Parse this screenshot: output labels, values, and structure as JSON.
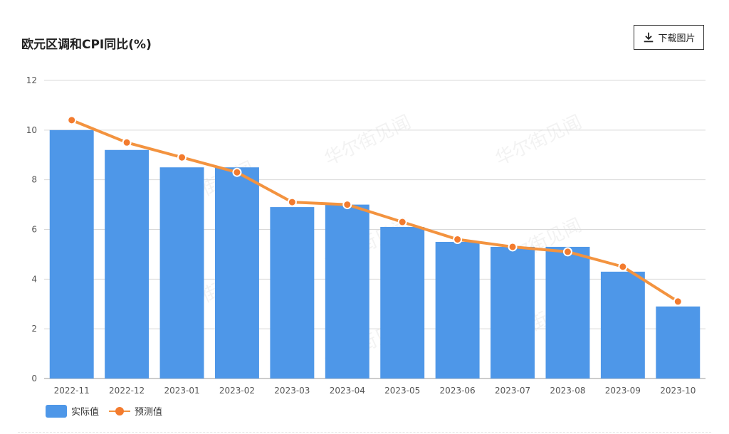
{
  "title": "欧元区调和CPI同比(%)",
  "download_label": "下载图片",
  "watermark": "华尔街见闻",
  "legend": {
    "actual": "实际值",
    "forecast": "预测值"
  },
  "colors": {
    "bar": "#4e97e8",
    "line": "#f3933f",
    "point": "#f37b2e",
    "grid": "#d9d9d9",
    "axis_text": "#555555"
  },
  "chart_data": {
    "type": "bar",
    "categories": [
      "2022-11",
      "2022-12",
      "2023-01",
      "2023-02",
      "2023-03",
      "2023-04",
      "2023-05",
      "2023-06",
      "2023-07",
      "2023-08",
      "2023-09",
      "2023-10"
    ],
    "series": [
      {
        "name": "实际值",
        "type": "bar",
        "values": [
          10.0,
          9.2,
          8.5,
          8.5,
          6.9,
          7.0,
          6.1,
          5.5,
          5.3,
          5.3,
          4.3,
          2.9
        ]
      },
      {
        "name": "预测值",
        "type": "line",
        "values": [
          10.4,
          9.5,
          8.9,
          8.3,
          7.1,
          7.0,
          6.3,
          5.6,
          5.3,
          5.1,
          4.5,
          3.1
        ]
      }
    ],
    "ylim": [
      0,
      12
    ],
    "yticks": [
      0,
      2,
      4,
      6,
      8,
      10,
      12
    ],
    "grid": true,
    "legend_position": "bottom-left"
  }
}
